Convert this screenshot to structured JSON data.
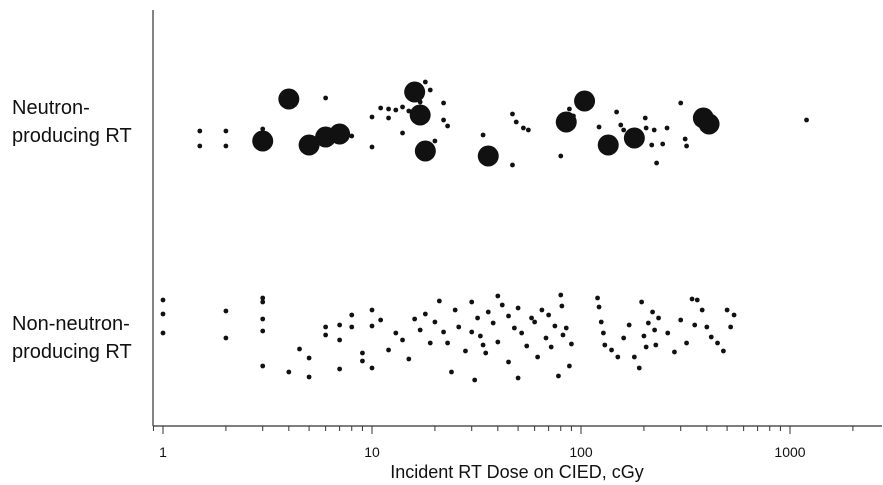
{
  "chart_data": {
    "type": "scatter",
    "title": "",
    "xlabel": "Incident RT Dose on CIED, cGy",
    "ylabel": "",
    "x_scale": "log",
    "xlim": [
      0.9,
      2500
    ],
    "x_ticks": [
      {
        "value": 1,
        "label": "1"
      },
      {
        "value": 10,
        "label": "10"
      },
      {
        "value": 100,
        "label": "100"
      },
      {
        "value": 1000,
        "label": "1000"
      }
    ],
    "categories": [
      {
        "id": "neutron",
        "lines": [
          "Neutron-",
          "producing RT"
        ]
      },
      {
        "id": "non-neutron",
        "lines": [
          "Non-neutron-",
          "producing RT"
        ]
      }
    ],
    "grid": false,
    "legend": "none",
    "colors": {
      "points": "#111111",
      "axis": "#333333"
    },
    "series": [
      {
        "category": "neutron",
        "marker": "large",
        "note": "large markers",
        "points": [
          [
            3,
            141
          ],
          [
            4,
            99
          ],
          [
            5,
            145
          ],
          [
            6,
            137
          ],
          [
            7,
            134
          ],
          [
            16,
            92
          ],
          [
            17,
            115
          ],
          [
            18,
            151
          ],
          [
            36,
            156
          ],
          [
            85,
            122
          ],
          [
            104,
            101
          ],
          [
            135,
            145
          ],
          [
            180,
            138
          ],
          [
            385,
            118
          ],
          [
            410,
            124
          ]
        ]
      },
      {
        "category": "neutron",
        "marker": "small",
        "points": [
          [
            1.5,
            131
          ],
          [
            1.5,
            146
          ],
          [
            2,
            131
          ],
          [
            2,
            146
          ],
          [
            3,
            129
          ],
          [
            6,
            98
          ],
          [
            8,
            136
          ],
          [
            10,
            117
          ],
          [
            10,
            147
          ],
          [
            11,
            108
          ],
          [
            12,
            109
          ],
          [
            12,
            118
          ],
          [
            13,
            110
          ],
          [
            14,
            107
          ],
          [
            14,
            133
          ],
          [
            15,
            111
          ],
          [
            17,
            102
          ],
          [
            18,
            82
          ],
          [
            19,
            90
          ],
          [
            20,
            141
          ],
          [
            22,
            103
          ],
          [
            22,
            120
          ],
          [
            23,
            126
          ],
          [
            34,
            135
          ],
          [
            47,
            114
          ],
          [
            47,
            165
          ],
          [
            49,
            122
          ],
          [
            53,
            128
          ],
          [
            56,
            130
          ],
          [
            80,
            156
          ],
          [
            88,
            109
          ],
          [
            92,
            116
          ],
          [
            122,
            127
          ],
          [
            148,
            112
          ],
          [
            155,
            125
          ],
          [
            160,
            130
          ],
          [
            203,
            118
          ],
          [
            205,
            128
          ],
          [
            218,
            145
          ],
          [
            224,
            130
          ],
          [
            230,
            163
          ],
          [
            246,
            144
          ],
          [
            258,
            128
          ],
          [
            300,
            103
          ],
          [
            315,
            139
          ],
          [
            320,
            146
          ],
          [
            1200,
            120
          ]
        ]
      },
      {
        "category": "non-neutron",
        "marker": "small",
        "points": [
          [
            1,
            300
          ],
          [
            1,
            314
          ],
          [
            1,
            333
          ],
          [
            2,
            311
          ],
          [
            2,
            338
          ],
          [
            3,
            298
          ],
          [
            3,
            302
          ],
          [
            3,
            319
          ],
          [
            3,
            331
          ],
          [
            3,
            366
          ],
          [
            4,
            372
          ],
          [
            4.5,
            349
          ],
          [
            5,
            358
          ],
          [
            5,
            377
          ],
          [
            6,
            327
          ],
          [
            6,
            335
          ],
          [
            7,
            325
          ],
          [
            7,
            340
          ],
          [
            7,
            369
          ],
          [
            8,
            315
          ],
          [
            8,
            327
          ],
          [
            9,
            353
          ],
          [
            9,
            361
          ],
          [
            10,
            310
          ],
          [
            10,
            326
          ],
          [
            10,
            368
          ],
          [
            11,
            320
          ],
          [
            12,
            350
          ],
          [
            13,
            333
          ],
          [
            14,
            340
          ],
          [
            15,
            359
          ],
          [
            16,
            319
          ],
          [
            17,
            330
          ],
          [
            18,
            314
          ],
          [
            19,
            343
          ],
          [
            20,
            322
          ],
          [
            21,
            301
          ],
          [
            22,
            332
          ],
          [
            23,
            343
          ],
          [
            24,
            372
          ],
          [
            25,
            310
          ],
          [
            26,
            327
          ],
          [
            28,
            351
          ],
          [
            30,
            302
          ],
          [
            30,
            332
          ],
          [
            31,
            380
          ],
          [
            32,
            318
          ],
          [
            33,
            336
          ],
          [
            34,
            345
          ],
          [
            35,
            353
          ],
          [
            36,
            312
          ],
          [
            38,
            323
          ],
          [
            40,
            296
          ],
          [
            40,
            342
          ],
          [
            42,
            305
          ],
          [
            45,
            316
          ],
          [
            45,
            362
          ],
          [
            48,
            328
          ],
          [
            50,
            308
          ],
          [
            50,
            378
          ],
          [
            52,
            333
          ],
          [
            55,
            346
          ],
          [
            58,
            318
          ],
          [
            60,
            322
          ],
          [
            62,
            357
          ],
          [
            65,
            310
          ],
          [
            68,
            338
          ],
          [
            70,
            315
          ],
          [
            72,
            347
          ],
          [
            75,
            326
          ],
          [
            78,
            376
          ],
          [
            80,
            295
          ],
          [
            81,
            306
          ],
          [
            82,
            335
          ],
          [
            85,
            328
          ],
          [
            88,
            366
          ],
          [
            90,
            344
          ],
          [
            120,
            298
          ],
          [
            122,
            307
          ],
          [
            125,
            322
          ],
          [
            128,
            333
          ],
          [
            130,
            345
          ],
          [
            140,
            350
          ],
          [
            150,
            357
          ],
          [
            160,
            338
          ],
          [
            170,
            325
          ],
          [
            180,
            357
          ],
          [
            190,
            368
          ],
          [
            195,
            302
          ],
          [
            200,
            336
          ],
          [
            205,
            347
          ],
          [
            210,
            323
          ],
          [
            220,
            312
          ],
          [
            225,
            330
          ],
          [
            228,
            345
          ],
          [
            235,
            318
          ],
          [
            260,
            333
          ],
          [
            280,
            352
          ],
          [
            300,
            320
          ],
          [
            320,
            343
          ],
          [
            340,
            299
          ],
          [
            350,
            325
          ],
          [
            360,
            300
          ],
          [
            380,
            310
          ],
          [
            400,
            327
          ],
          [
            420,
            337
          ],
          [
            450,
            343
          ],
          [
            480,
            351
          ],
          [
            500,
            310
          ],
          [
            520,
            327
          ],
          [
            540,
            315
          ]
        ]
      }
    ]
  }
}
